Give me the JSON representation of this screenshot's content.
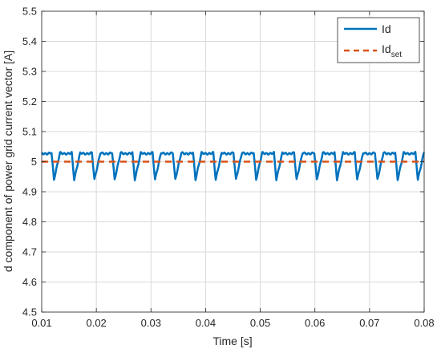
{
  "chart_data": {
    "type": "line",
    "xlabel": "Time [s]",
    "ylabel": "d component of power grid current vector [A]",
    "xlim": [
      0.01,
      0.08
    ],
    "ylim": [
      4.5,
      5.5
    ],
    "xticks": [
      0.01,
      0.02,
      0.03,
      0.04,
      0.05,
      0.06,
      0.07,
      0.08
    ],
    "yticks": [
      4.5,
      4.6,
      4.7,
      4.8,
      4.9,
      5.0,
      5.1,
      5.2,
      5.3,
      5.4,
      5.5
    ],
    "xtick_labels": [
      "0.01",
      "0.02",
      "0.03",
      "0.04",
      "0.05",
      "0.06",
      "0.07",
      "0.08"
    ],
    "ytick_labels": [
      "4.5",
      "4.6",
      "4.7",
      "4.8",
      "4.9",
      "5",
      "5.1",
      "5.2",
      "5.3",
      "5.4",
      "5.5"
    ],
    "grid": true,
    "legend_position": "top-right",
    "series": [
      {
        "name": "Id",
        "legend_main": "Id",
        "legend_sub": "",
        "color": "#0072BD",
        "style": "solid",
        "signal": {
          "kind": "periodic",
          "start": 0.01,
          "end": 0.08,
          "period": 0.0037,
          "phase": 0.0007,
          "baseline": 5.03,
          "min": 4.94,
          "shape": "sharp dip then recovery"
        }
      },
      {
        "name": "Idset",
        "legend_main": "Id",
        "legend_sub": "set",
        "color": "#D95319",
        "style": "dashed",
        "x": [
          0.01,
          0.08
        ],
        "y": [
          5.0,
          5.0
        ]
      }
    ]
  }
}
